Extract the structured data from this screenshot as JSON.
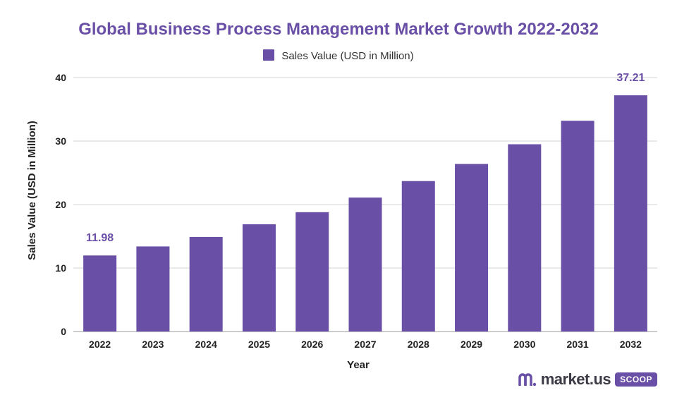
{
  "title": "Global Business Process Management Market Growth 2022-2032",
  "legend": {
    "label": "Sales Value (USD in Million)"
  },
  "colors": {
    "bar": "#6a4fa7",
    "grid": "#d5d5d5",
    "axis_text": "#222222",
    "label": "#6a4fa7"
  },
  "watermark": {
    "brand": "market.us",
    "badge": "SCOOP"
  },
  "chart_data": {
    "type": "bar",
    "title": "Global Business Process Management Market Growth 2022-2032",
    "xlabel": "Year",
    "ylabel": "Sales Value (USD in Million)",
    "categories": [
      "2022",
      "2023",
      "2024",
      "2025",
      "2026",
      "2027",
      "2028",
      "2029",
      "2030",
      "2031",
      "2032"
    ],
    "series": [
      {
        "name": "Sales Value (USD in Million)",
        "values": [
          11.98,
          13.4,
          14.9,
          16.9,
          18.8,
          21.1,
          23.7,
          26.4,
          29.5,
          33.2,
          37.21
        ]
      }
    ],
    "data_labels": [
      {
        "index": 0,
        "text": "11.98"
      },
      {
        "index": 10,
        "text": "37.21"
      }
    ],
    "ylim": [
      0,
      40
    ],
    "yticks": [
      0,
      10,
      20,
      30,
      40
    ],
    "grid": true,
    "legend_position": "top-center"
  }
}
